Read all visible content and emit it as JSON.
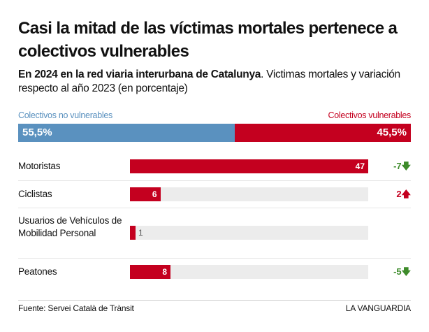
{
  "title": "Casi la mitad de las víctimas mortales pertenece a colectivos vulnerables",
  "subtitle_bold": "En 2024 en la red viaria interurbana de Catalunya",
  "subtitle_rest": ". Victimas mortales y variación respecto al año 2023 (en porcentaje)",
  "colors": {
    "non_vulnerable": "#5a91bf",
    "vulnerable": "#c4001f",
    "down": "#3d8b2a",
    "up": "#c4001f",
    "track": "#ececec"
  },
  "chart_data": [
    {
      "type": "bar",
      "orientation": "horizontal",
      "stacked": true,
      "series": [
        {
          "name": "Colectivos no vulnerables",
          "value": 55.5,
          "label": "55,5%"
        },
        {
          "name": "Colectivos vulnerables",
          "value": 45.5,
          "label": "45,5%"
        }
      ]
    },
    {
      "type": "bar",
      "orientation": "horizontal",
      "xlim": [
        0,
        47
      ],
      "categories": [
        "Motoristas",
        "Ciclistas",
        "Usuarios de Vehículos de Mobilidad Personal",
        "Peatones"
      ],
      "values": [
        47,
        6,
        1,
        8
      ],
      "value_labels": [
        "47",
        "6",
        "1",
        "8"
      ],
      "change": [
        {
          "label": "-7",
          "dir": "down"
        },
        {
          "label": "2",
          "dir": "up"
        },
        {
          "label": "",
          "dir": ""
        },
        {
          "label": "-5",
          "dir": "down"
        }
      ]
    }
  ],
  "footer": {
    "source": "Fuente: Servei Català de Trànsit",
    "brand": "LA VANGUARDIA"
  }
}
